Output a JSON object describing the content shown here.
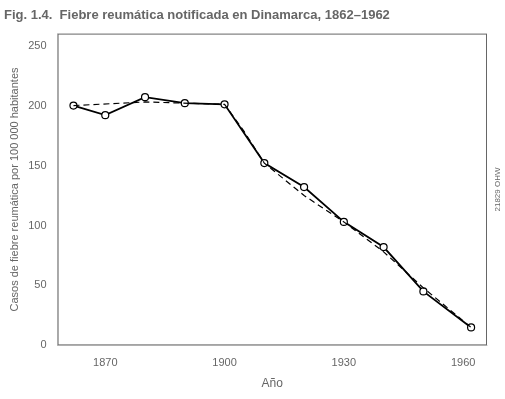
{
  "chart_data": {
    "type": "line",
    "title": "Fig. 1.4.  Fiebre reumática notificada en Dinamarca, 1862–1962",
    "x_label": "Año",
    "y_label": "Casos de fiebre reumática por 100 000 habitantes",
    "series": [
      {
        "x": [
          1862,
          1880,
          1900,
          1905,
          1910,
          1920,
          1930,
          1940,
          1950,
          1962
        ],
        "values": [
          200,
          203,
          201,
          178,
          152,
          125,
          103,
          78,
          48,
          15
        ],
        "color": "#000000",
        "line_style": "dashed"
      },
      {
        "x": [
          1862,
          1870,
          1880,
          1890,
          1900,
          1910,
          1920,
          1930,
          1940,
          1950,
          1962
        ],
        "values": [
          200,
          192,
          207,
          202,
          201,
          152,
          132,
          103,
          82,
          45,
          15
        ],
        "color": "#000000",
        "line_style": "solid",
        "marker": "circle"
      }
    ],
    "xlim": [
      1858,
      1966
    ],
    "xticks": [
      1870,
      1900,
      1930,
      1960
    ],
    "ylim": [
      0,
      260
    ],
    "yticks": [
      0,
      50,
      100,
      150,
      200,
      250
    ],
    "grid": false,
    "annotations": [
      "21829 OHW"
    ]
  }
}
